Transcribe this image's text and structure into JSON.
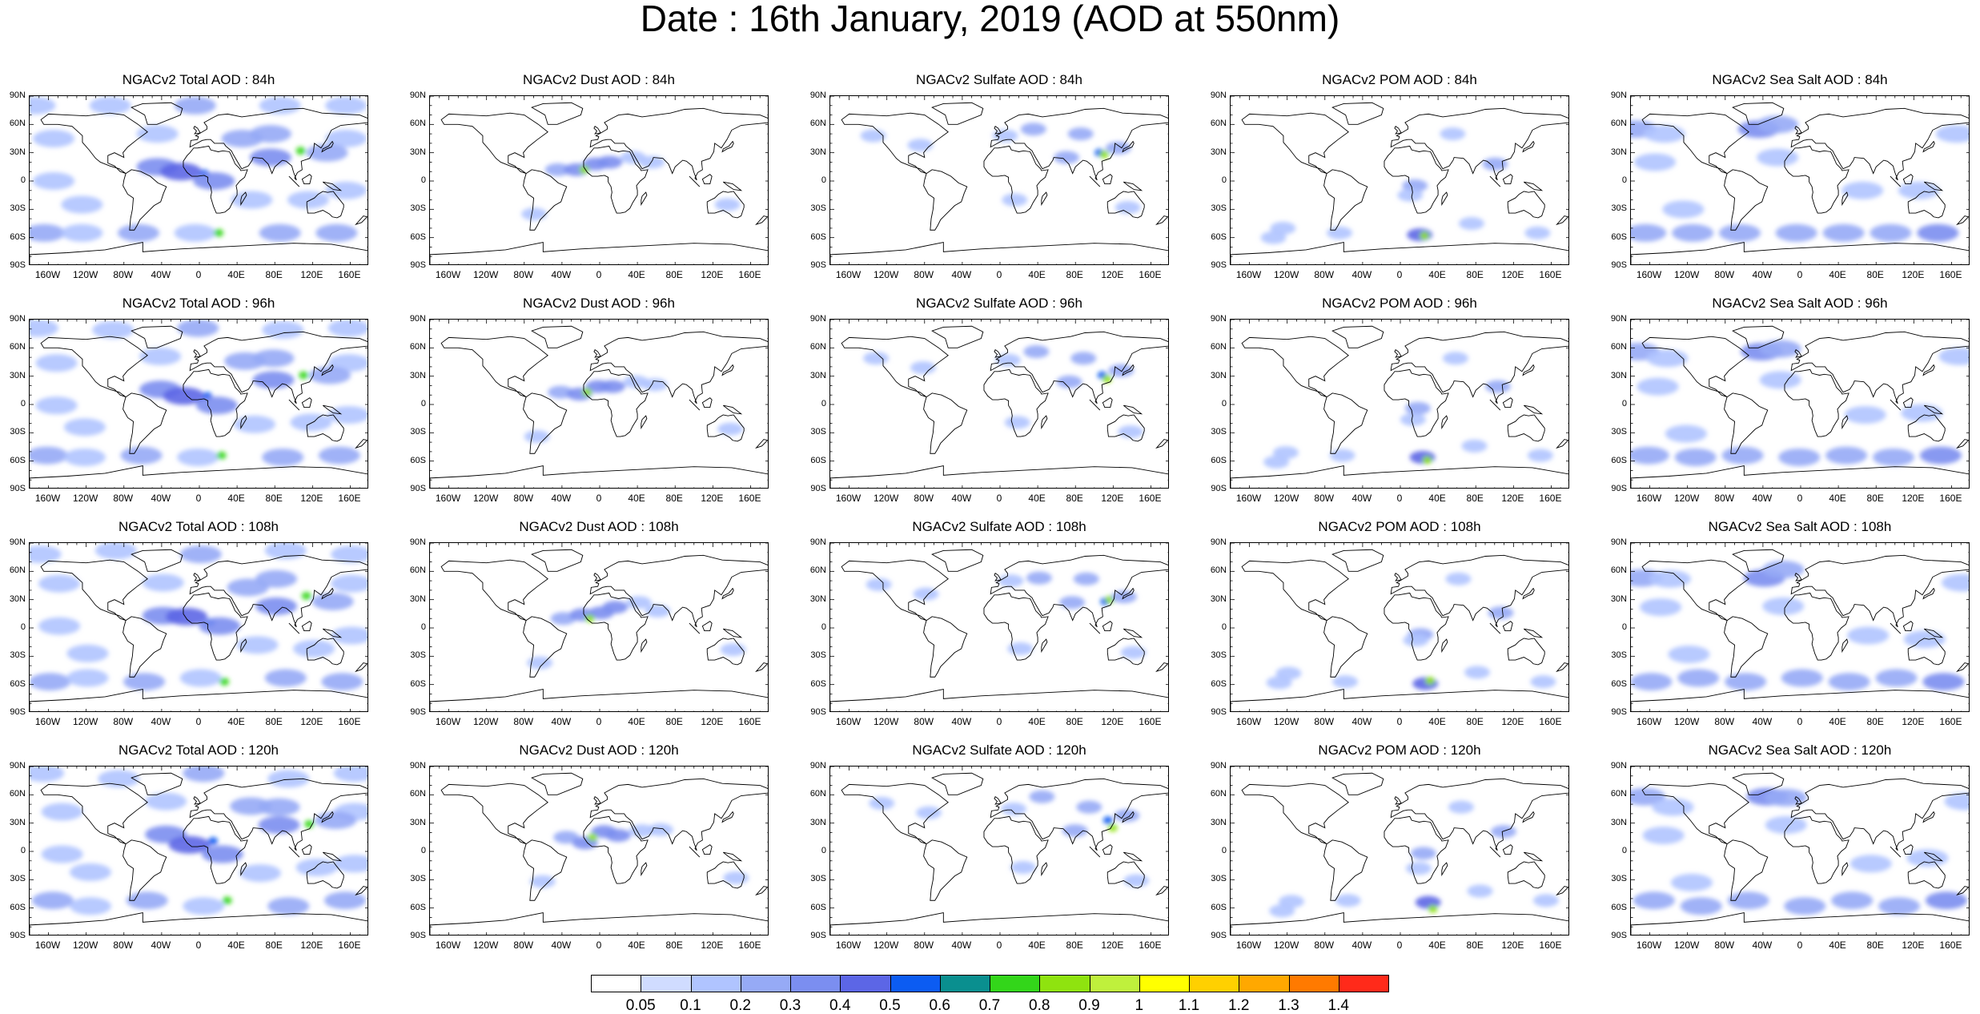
{
  "title": "Date : 16th January, 2019 (AOD at 550nm)",
  "panels": [
    [
      "NGACv2 Total AOD : 84h",
      "NGACv2 Dust AOD : 84h",
      "NGACv2 Sulfate AOD : 84h",
      "NGACv2 POM AOD : 84h",
      "NGACv2 Sea Salt AOD : 84h"
    ],
    [
      "NGACv2 Total AOD : 96h",
      "NGACv2 Dust AOD : 96h",
      "NGACv2 Sulfate AOD : 96h",
      "NGACv2 POM AOD : 96h",
      "NGACv2 Sea Salt AOD : 96h"
    ],
    [
      "NGACv2 Total AOD : 108h",
      "NGACv2 Dust AOD : 108h",
      "NGACv2 Sulfate AOD : 108h",
      "NGACv2 POM AOD : 108h",
      "NGACv2 Sea Salt AOD : 108h"
    ],
    [
      "NGACv2 Total AOD : 120h",
      "NGACv2 Dust AOD : 120h",
      "NGACv2 Sulfate AOD : 120h",
      "NGACv2 POM AOD : 120h",
      "NGACv2 Sea Salt  AOD : 120h"
    ]
  ],
  "lat_ticks": [
    "90N",
    "60N",
    "30N",
    "0",
    "30S",
    "60S",
    "90S"
  ],
  "lon_ticks": [
    "160W",
    "120W",
    "80W",
    "40W",
    "0",
    "40E",
    "80E",
    "120E",
    "160E"
  ],
  "colorbar": {
    "labels": [
      "0.05",
      "0.1",
      "0.2",
      "0.3",
      "0.4",
      "0.5",
      "0.6",
      "0.7",
      "0.8",
      "0.9",
      "1",
      "1.1",
      "1.2",
      "1.3",
      "1.4"
    ],
    "colors": [
      "#ffffff",
      "#d0dcff",
      "#b0c4ff",
      "#96aaf6",
      "#7b8ef0",
      "#5c66e6",
      "#0c5cf2",
      "#0a8f8f",
      "#33d61a",
      "#8fe30f",
      "#bff03c",
      "#ffff00",
      "#ffd000",
      "#ffa800",
      "#ff7a00",
      "#ff2a1a"
    ]
  },
  "plumes": {
    "total": [
      {
        "lon": -170,
        "lat": 80,
        "v": 0.15
      },
      {
        "lon": -90,
        "lat": 80,
        "v": 0.15
      },
      {
        "lon": 0,
        "lat": 80,
        "v": 0.2
      },
      {
        "lon": 90,
        "lat": 80,
        "v": 0.15
      },
      {
        "lon": 160,
        "lat": 80,
        "v": 0.15
      },
      {
        "lon": -150,
        "lat": 45,
        "v": 0.1
      },
      {
        "lon": -40,
        "lat": 50,
        "v": 0.15
      },
      {
        "lon": 160,
        "lat": 45,
        "v": 0.15
      },
      {
        "lon": -40,
        "lat": 15,
        "v": 0.3
      },
      {
        "lon": -15,
        "lat": 10,
        "v": 0.4
      },
      {
        "lon": 10,
        "lat": 8,
        "v": 0.5
      },
      {
        "lon": 20,
        "lat": 0,
        "v": 0.3
      },
      {
        "lon": 50,
        "lat": 45,
        "v": 0.2
      },
      {
        "lon": 80,
        "lat": 50,
        "v": 0.2
      },
      {
        "lon": 80,
        "lat": 25,
        "v": 0.3
      },
      {
        "lon": 112,
        "lat": 32,
        "v": 0.7
      },
      {
        "lon": 140,
        "lat": 30,
        "v": 0.2
      },
      {
        "lon": -150,
        "lat": 0,
        "v": 0.1
      },
      {
        "lon": -120,
        "lat": -25,
        "v": 0.1
      },
      {
        "lon": 60,
        "lat": -20,
        "v": 0.15
      },
      {
        "lon": 120,
        "lat": -20,
        "v": 0.1
      },
      {
        "lon": 160,
        "lat": -10,
        "v": 0.1
      },
      {
        "lon": -160,
        "lat": -55,
        "v": 0.2
      },
      {
        "lon": -120,
        "lat": -55,
        "v": 0.15
      },
      {
        "lon": -60,
        "lat": -55,
        "v": 0.2
      },
      {
        "lon": 0,
        "lat": -55,
        "v": 0.15
      },
      {
        "lon": 25,
        "lat": -55,
        "v": 0.7
      },
      {
        "lon": 90,
        "lat": -55,
        "v": 0.2
      },
      {
        "lon": 150,
        "lat": -55,
        "v": 0.2
      }
    ],
    "dust": [
      {
        "lon": -40,
        "lat": 12,
        "v": 0.2
      },
      {
        "lon": -20,
        "lat": 12,
        "v": 0.3
      },
      {
        "lon": 0,
        "lat": 18,
        "v": 0.3
      },
      {
        "lon": 15,
        "lat": 20,
        "v": 0.3
      },
      {
        "lon": -12,
        "lat": 12,
        "v": 0.8
      },
      {
        "lon": 40,
        "lat": 25,
        "v": 0.15
      },
      {
        "lon": 60,
        "lat": 20,
        "v": 0.1
      },
      {
        "lon": 140,
        "lat": -25,
        "v": 0.1
      },
      {
        "lon": -65,
        "lat": -35,
        "v": 0.1
      }
    ],
    "sulfate": [
      {
        "lon": 40,
        "lat": 55,
        "v": 0.2
      },
      {
        "lon": 90,
        "lat": 50,
        "v": 0.2
      },
      {
        "lon": 110,
        "lat": 30,
        "v": 0.5
      },
      {
        "lon": 115,
        "lat": 28,
        "v": 0.8
      },
      {
        "lon": 130,
        "lat": 35,
        "v": 0.2
      },
      {
        "lon": 75,
        "lat": 25,
        "v": 0.2
      },
      {
        "lon": -80,
        "lat": 38,
        "v": 0.15
      },
      {
        "lon": 10,
        "lat": 48,
        "v": 0.15
      },
      {
        "lon": -130,
        "lat": 48,
        "v": 0.1
      },
      {
        "lon": 140,
        "lat": -28,
        "v": 0.1
      },
      {
        "lon": 20,
        "lat": -20,
        "v": 0.1
      }
    ],
    "pom": [
      {
        "lon": 20,
        "lat": -5,
        "v": 0.2
      },
      {
        "lon": 15,
        "lat": -15,
        "v": 0.15
      },
      {
        "lon": 105,
        "lat": 18,
        "v": 0.2
      },
      {
        "lon": 60,
        "lat": 50,
        "v": 0.15
      },
      {
        "lon": 25,
        "lat": -57,
        "v": 0.4
      },
      {
        "lon": 30,
        "lat": -58,
        "v": 0.8
      },
      {
        "lon": -60,
        "lat": -55,
        "v": 0.15
      },
      {
        "lon": -130,
        "lat": -60,
        "v": 0.1
      },
      {
        "lon": 150,
        "lat": -55,
        "v": 0.1
      },
      {
        "lon": -120,
        "lat": -50,
        "v": 0.1
      },
      {
        "lon": 80,
        "lat": -45,
        "v": 0.1
      }
    ],
    "seasalt": [
      {
        "lon": -170,
        "lat": 55,
        "v": 0.2
      },
      {
        "lon": -140,
        "lat": 50,
        "v": 0.15
      },
      {
        "lon": -40,
        "lat": 55,
        "v": 0.3
      },
      {
        "lon": -20,
        "lat": 60,
        "v": 0.2
      },
      {
        "lon": 170,
        "lat": 50,
        "v": 0.15
      },
      {
        "lon": -150,
        "lat": 20,
        "v": 0.1
      },
      {
        "lon": -20,
        "lat": 25,
        "v": 0.1
      },
      {
        "lon": 70,
        "lat": -10,
        "v": 0.15
      },
      {
        "lon": 130,
        "lat": -10,
        "v": 0.1
      },
      {
        "lon": -120,
        "lat": -30,
        "v": 0.1
      },
      {
        "lon": -160,
        "lat": -55,
        "v": 0.25
      },
      {
        "lon": -110,
        "lat": -55,
        "v": 0.2
      },
      {
        "lon": -60,
        "lat": -55,
        "v": 0.2
      },
      {
        "lon": 0,
        "lat": -55,
        "v": 0.2
      },
      {
        "lon": 50,
        "lat": -55,
        "v": 0.2
      },
      {
        "lon": 100,
        "lat": -55,
        "v": 0.2
      },
      {
        "lon": 150,
        "lat": -55,
        "v": 0.3
      }
    ]
  }
}
